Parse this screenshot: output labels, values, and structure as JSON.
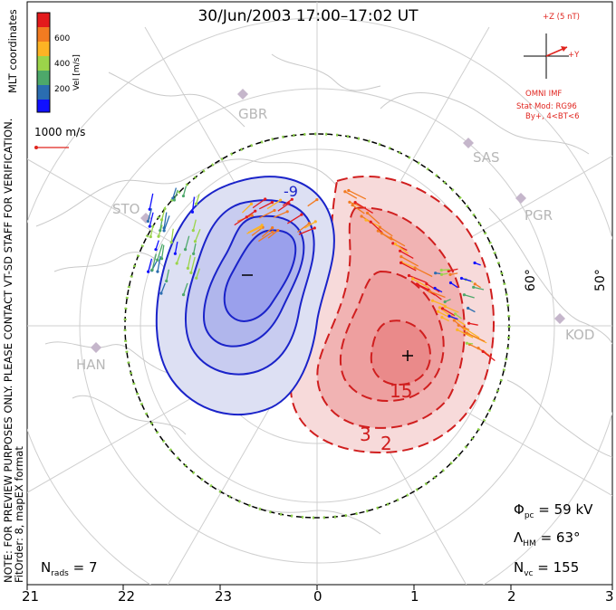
{
  "title": "30/Jun/2003 17:00–17:02 UT",
  "colorbar": {
    "ticks": [
      "600",
      "400",
      "200"
    ],
    "label": "Vel [m/s]",
    "colors": [
      "#e31a1c",
      "#f27b21",
      "#fdb324",
      "#9bd44a",
      "#4da86a",
      "#2a6db0",
      "#1010ff"
    ]
  },
  "mlt_label": "MLT coordinates",
  "ref_vector": {
    "label": "1000 m/s"
  },
  "disclaimer": "NOTE: FOR PREVIEW PURPOSES ONLY. PLEASE CONTACT VT-SD STAFF FOR VERIFICATION.",
  "fit_info": "FitOrder: 8, mapEX format",
  "imf": {
    "z_label": "+Z (5 nT)",
    "y_label": "+Y",
    "source": "OMNI IMF",
    "model_line1": "Stat Mod: RG96",
    "model_line2": "By+, 4<BT<6"
  },
  "stations": [
    "GBR",
    "SAS",
    "PGR",
    "STO",
    "KOD",
    "HAN"
  ],
  "lat_labels": [
    "60°",
    "50°"
  ],
  "contours": {
    "negative_label": "-9",
    "positive_label_1": "15",
    "positive_label_2": "3",
    "positive_label_3": "2",
    "min_marker": "−",
    "max_marker": "+"
  },
  "stats": {
    "n_rads": "N",
    "n_rads_sub": "rads",
    "n_rads_value": "= 7",
    "phi": "Φ",
    "phi_sub": "pc",
    "phi_value": "= 59 kV",
    "lambda": "Λ",
    "lambda_sub": "HM",
    "lambda_value": "= 63°",
    "nvc": "N",
    "nvc_sub": "vc",
    "nvc_value": "= 155"
  },
  "mlt_axis": [
    "21",
    "22",
    "23",
    "0",
    "1",
    "2",
    "3"
  ],
  "colors": {
    "negative_contour": "#1a23c9",
    "negative_fill_light": "#dde0f3",
    "negative_fill_mid": "#b6bcec",
    "negative_fill_dark": "#9aa0ec",
    "positive_contour": "#d01e1e",
    "positive_fill_light": "#f7dada",
    "positive_fill_mid": "#f1b3b3",
    "positive_fill_dark": "#ea8a8a",
    "grid": "#c8c8c8",
    "coast": "#c9c9c9",
    "hmb_dash": "#8ed24a"
  }
}
